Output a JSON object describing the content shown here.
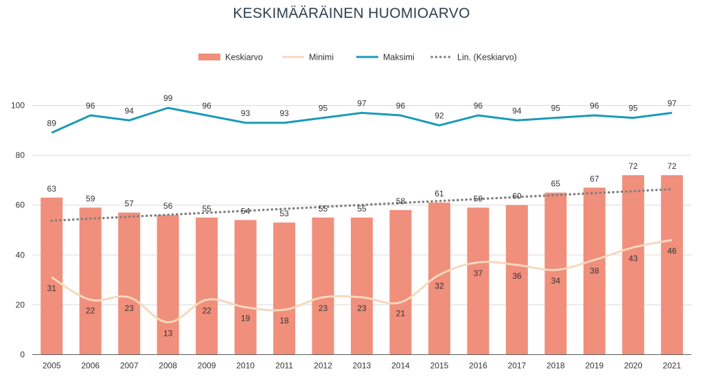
{
  "colors": {
    "bar": "#f08f7c",
    "minimi": "#f5d9bd",
    "maksimi": "#1a9ab8",
    "trend": "#808080",
    "grid": "#d9d9d9",
    "axis": "#595959"
  },
  "chart_data": {
    "type": "bar",
    "title": "KESKIMÄÄRÄINEN HUOMIOARVO",
    "xlabel": "",
    "ylabel": "",
    "ylim": [
      0,
      100
    ],
    "yticks": [
      0,
      20,
      40,
      60,
      80,
      100
    ],
    "grid": true,
    "legend_position": "top",
    "categories": [
      "2005",
      "2006",
      "2007",
      "2008",
      "2009",
      "2010",
      "2011",
      "2012",
      "2013",
      "2014",
      "2015",
      "2016",
      "2017",
      "2018",
      "2019",
      "2020",
      "2021"
    ],
    "series": [
      {
        "name": "Keskiarvo",
        "type": "bar",
        "values": [
          63,
          59,
          57,
          56,
          55,
          54,
          53,
          55,
          55,
          58,
          61,
          59,
          60,
          65,
          67,
          72,
          72
        ]
      },
      {
        "name": "Minimi",
        "type": "line",
        "values": [
          31,
          22,
          23,
          13,
          22,
          19,
          18,
          23,
          23,
          21,
          32,
          37,
          36,
          34,
          38,
          43,
          46
        ]
      },
      {
        "name": "Maksimi",
        "type": "line",
        "values": [
          89,
          96,
          94,
          99,
          96,
          93,
          93,
          95,
          97,
          96,
          92,
          96,
          94,
          95,
          96,
          95,
          97
        ]
      },
      {
        "name": "Lin. (Keskiarvo)",
        "type": "trendline",
        "of": "Keskiarvo"
      }
    ]
  }
}
